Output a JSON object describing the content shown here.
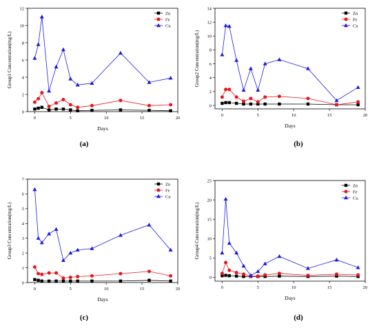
{
  "figure": {
    "panel_labels": [
      "(a)",
      "(b)",
      "(c)",
      "(d)"
    ],
    "colors": {
      "Zn": "#000000",
      "Fe": "#e8141b",
      "Cu": "#1a1ae6"
    }
  },
  "chart_data": [
    {
      "type": "line",
      "panel": "(a)",
      "xlabel": "Days",
      "ylabel": "Group1 Concentration(mg/L)",
      "xlim": [
        -1,
        20
      ],
      "ylim": [
        0,
        12
      ],
      "xticks": [
        0,
        5,
        10,
        15,
        20
      ],
      "yticks": [
        0,
        2,
        4,
        6,
        8,
        10,
        12
      ],
      "legend_position": "top-right",
      "x": [
        0,
        0.5,
        1,
        2,
        3,
        4,
        5,
        6,
        8,
        12,
        16,
        19
      ],
      "series": [
        {
          "name": "Zn",
          "marker": "square",
          "values": [
            0.3,
            0.4,
            0.5,
            0.2,
            0.3,
            0.3,
            0.2,
            0.1,
            0.15,
            0.2,
            0.15,
            0.1
          ]
        },
        {
          "name": "Fe",
          "marker": "circle",
          "values": [
            1.1,
            1.5,
            2.2,
            0.6,
            1.0,
            1.4,
            0.8,
            0.5,
            0.7,
            1.3,
            0.7,
            0.8
          ]
        },
        {
          "name": "Cu",
          "marker": "triangle",
          "values": [
            6.2,
            7.8,
            11.0,
            2.4,
            5.2,
            7.2,
            3.8,
            3.1,
            3.3,
            6.8,
            3.4,
            3.9
          ]
        }
      ]
    },
    {
      "type": "line",
      "panel": "(b)",
      "xlabel": "Days",
      "ylabel": "Group2 Concentration(mg/L)",
      "xlim": [
        -1,
        20
      ],
      "ylim": [
        -0.5,
        14
      ],
      "xticks": [
        0,
        5,
        10,
        15,
        20
      ],
      "yticks": [
        0,
        2,
        4,
        6,
        8,
        10,
        12,
        14
      ],
      "legend_position": "top-right",
      "x": [
        0,
        0.5,
        1,
        2,
        3,
        4,
        5,
        6,
        8,
        12,
        16,
        19
      ],
      "series": [
        {
          "name": "Zn",
          "marker": "square",
          "values": [
            0.3,
            0.4,
            0.4,
            0.3,
            0.2,
            0.2,
            0.2,
            0.2,
            0.2,
            0.2,
            0.1,
            0.1
          ]
        },
        {
          "name": "Fe",
          "marker": "circle",
          "values": [
            1.2,
            2.3,
            2.3,
            1.2,
            0.6,
            1.0,
            0.5,
            1.2,
            1.3,
            1.0,
            0.1,
            0.5
          ]
        },
        {
          "name": "Cu",
          "marker": "triangle",
          "values": [
            7.3,
            11.5,
            11.4,
            6.5,
            2.2,
            5.3,
            2.2,
            6.0,
            6.6,
            5.3,
            0.7,
            2.6
          ]
        }
      ]
    },
    {
      "type": "line",
      "panel": "(c)",
      "xlabel": "Days",
      "ylabel": "Group3 Concentration(mg/L)",
      "xlim": [
        -1,
        20
      ],
      "ylim": [
        0,
        7
      ],
      "xticks": [
        0,
        5,
        10,
        15,
        20
      ],
      "yticks": [
        0,
        1,
        2,
        3,
        4,
        5,
        6,
        7
      ],
      "legend_position": "top-right",
      "x": [
        0,
        0.5,
        1,
        2,
        3,
        4,
        5,
        6,
        8,
        12,
        16,
        19
      ],
      "series": [
        {
          "name": "Zn",
          "marker": "square",
          "values": [
            0.2,
            0.15,
            0.1,
            0.1,
            0.1,
            0.1,
            0.1,
            0.1,
            0.1,
            0.1,
            0.15,
            0.1
          ]
        },
        {
          "name": "Fe",
          "marker": "circle",
          "values": [
            1.05,
            0.6,
            0.55,
            0.65,
            0.65,
            0.3,
            0.35,
            0.4,
            0.45,
            0.6,
            0.75,
            0.45
          ]
        },
        {
          "name": "Cu",
          "marker": "triangle",
          "values": [
            6.3,
            3.0,
            2.7,
            3.3,
            3.6,
            1.5,
            2.0,
            2.2,
            2.3,
            3.2,
            3.9,
            2.2
          ]
        }
      ]
    },
    {
      "type": "line",
      "panel": "(d)",
      "xlabel": "Days",
      "ylabel": "Group4 Concentration(mg/L)",
      "xlim": [
        -1,
        20
      ],
      "ylim": [
        -1,
        25
      ],
      "xticks": [
        0,
        5,
        10,
        15,
        20
      ],
      "yticks": [
        0,
        5,
        10,
        15,
        20,
        25
      ],
      "legend_position": "top-right",
      "x": [
        0,
        0.5,
        1,
        2,
        3,
        4,
        5,
        6,
        8,
        12,
        16,
        19
      ],
      "series": [
        {
          "name": "Zn",
          "marker": "square",
          "values": [
            0.4,
            0.5,
            0.4,
            0.3,
            0.2,
            0.2,
            0.2,
            0.2,
            0.3,
            0.2,
            0.3,
            0.2
          ]
        },
        {
          "name": "Fe",
          "marker": "circle",
          "values": [
            1.0,
            3.8,
            1.8,
            1.2,
            0.8,
            0.3,
            0.3,
            0.6,
            1.0,
            0.5,
            0.8,
            0.6
          ]
        },
        {
          "name": "Cu",
          "marker": "triangle",
          "values": [
            6.3,
            20.2,
            8.8,
            6.3,
            2.9,
            0.5,
            1.5,
            3.5,
            5.4,
            2.3,
            4.5,
            2.5
          ]
        }
      ]
    }
  ]
}
